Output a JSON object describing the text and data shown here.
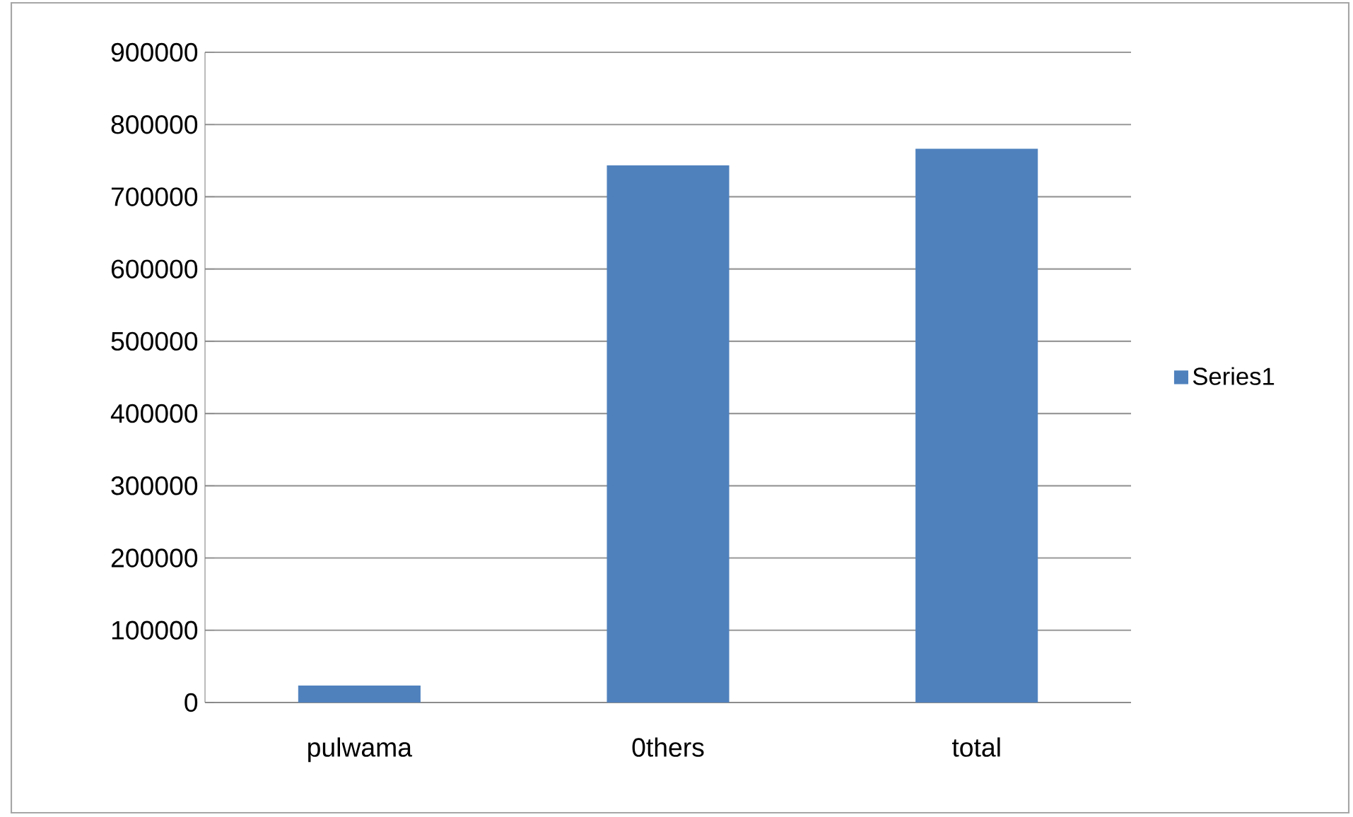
{
  "chart_data": {
    "type": "bar",
    "categories": [
      "pulwama",
      "0thers",
      "total"
    ],
    "series": [
      {
        "name": "Series1",
        "color": "#4f81bd",
        "values": [
          23000,
          743000,
          766000
        ]
      }
    ],
    "ylim": [
      0,
      900000
    ],
    "yticks": [
      0,
      100000,
      200000,
      300000,
      400000,
      500000,
      600000,
      700000,
      800000,
      900000
    ],
    "grid": "y",
    "legend": "right"
  }
}
